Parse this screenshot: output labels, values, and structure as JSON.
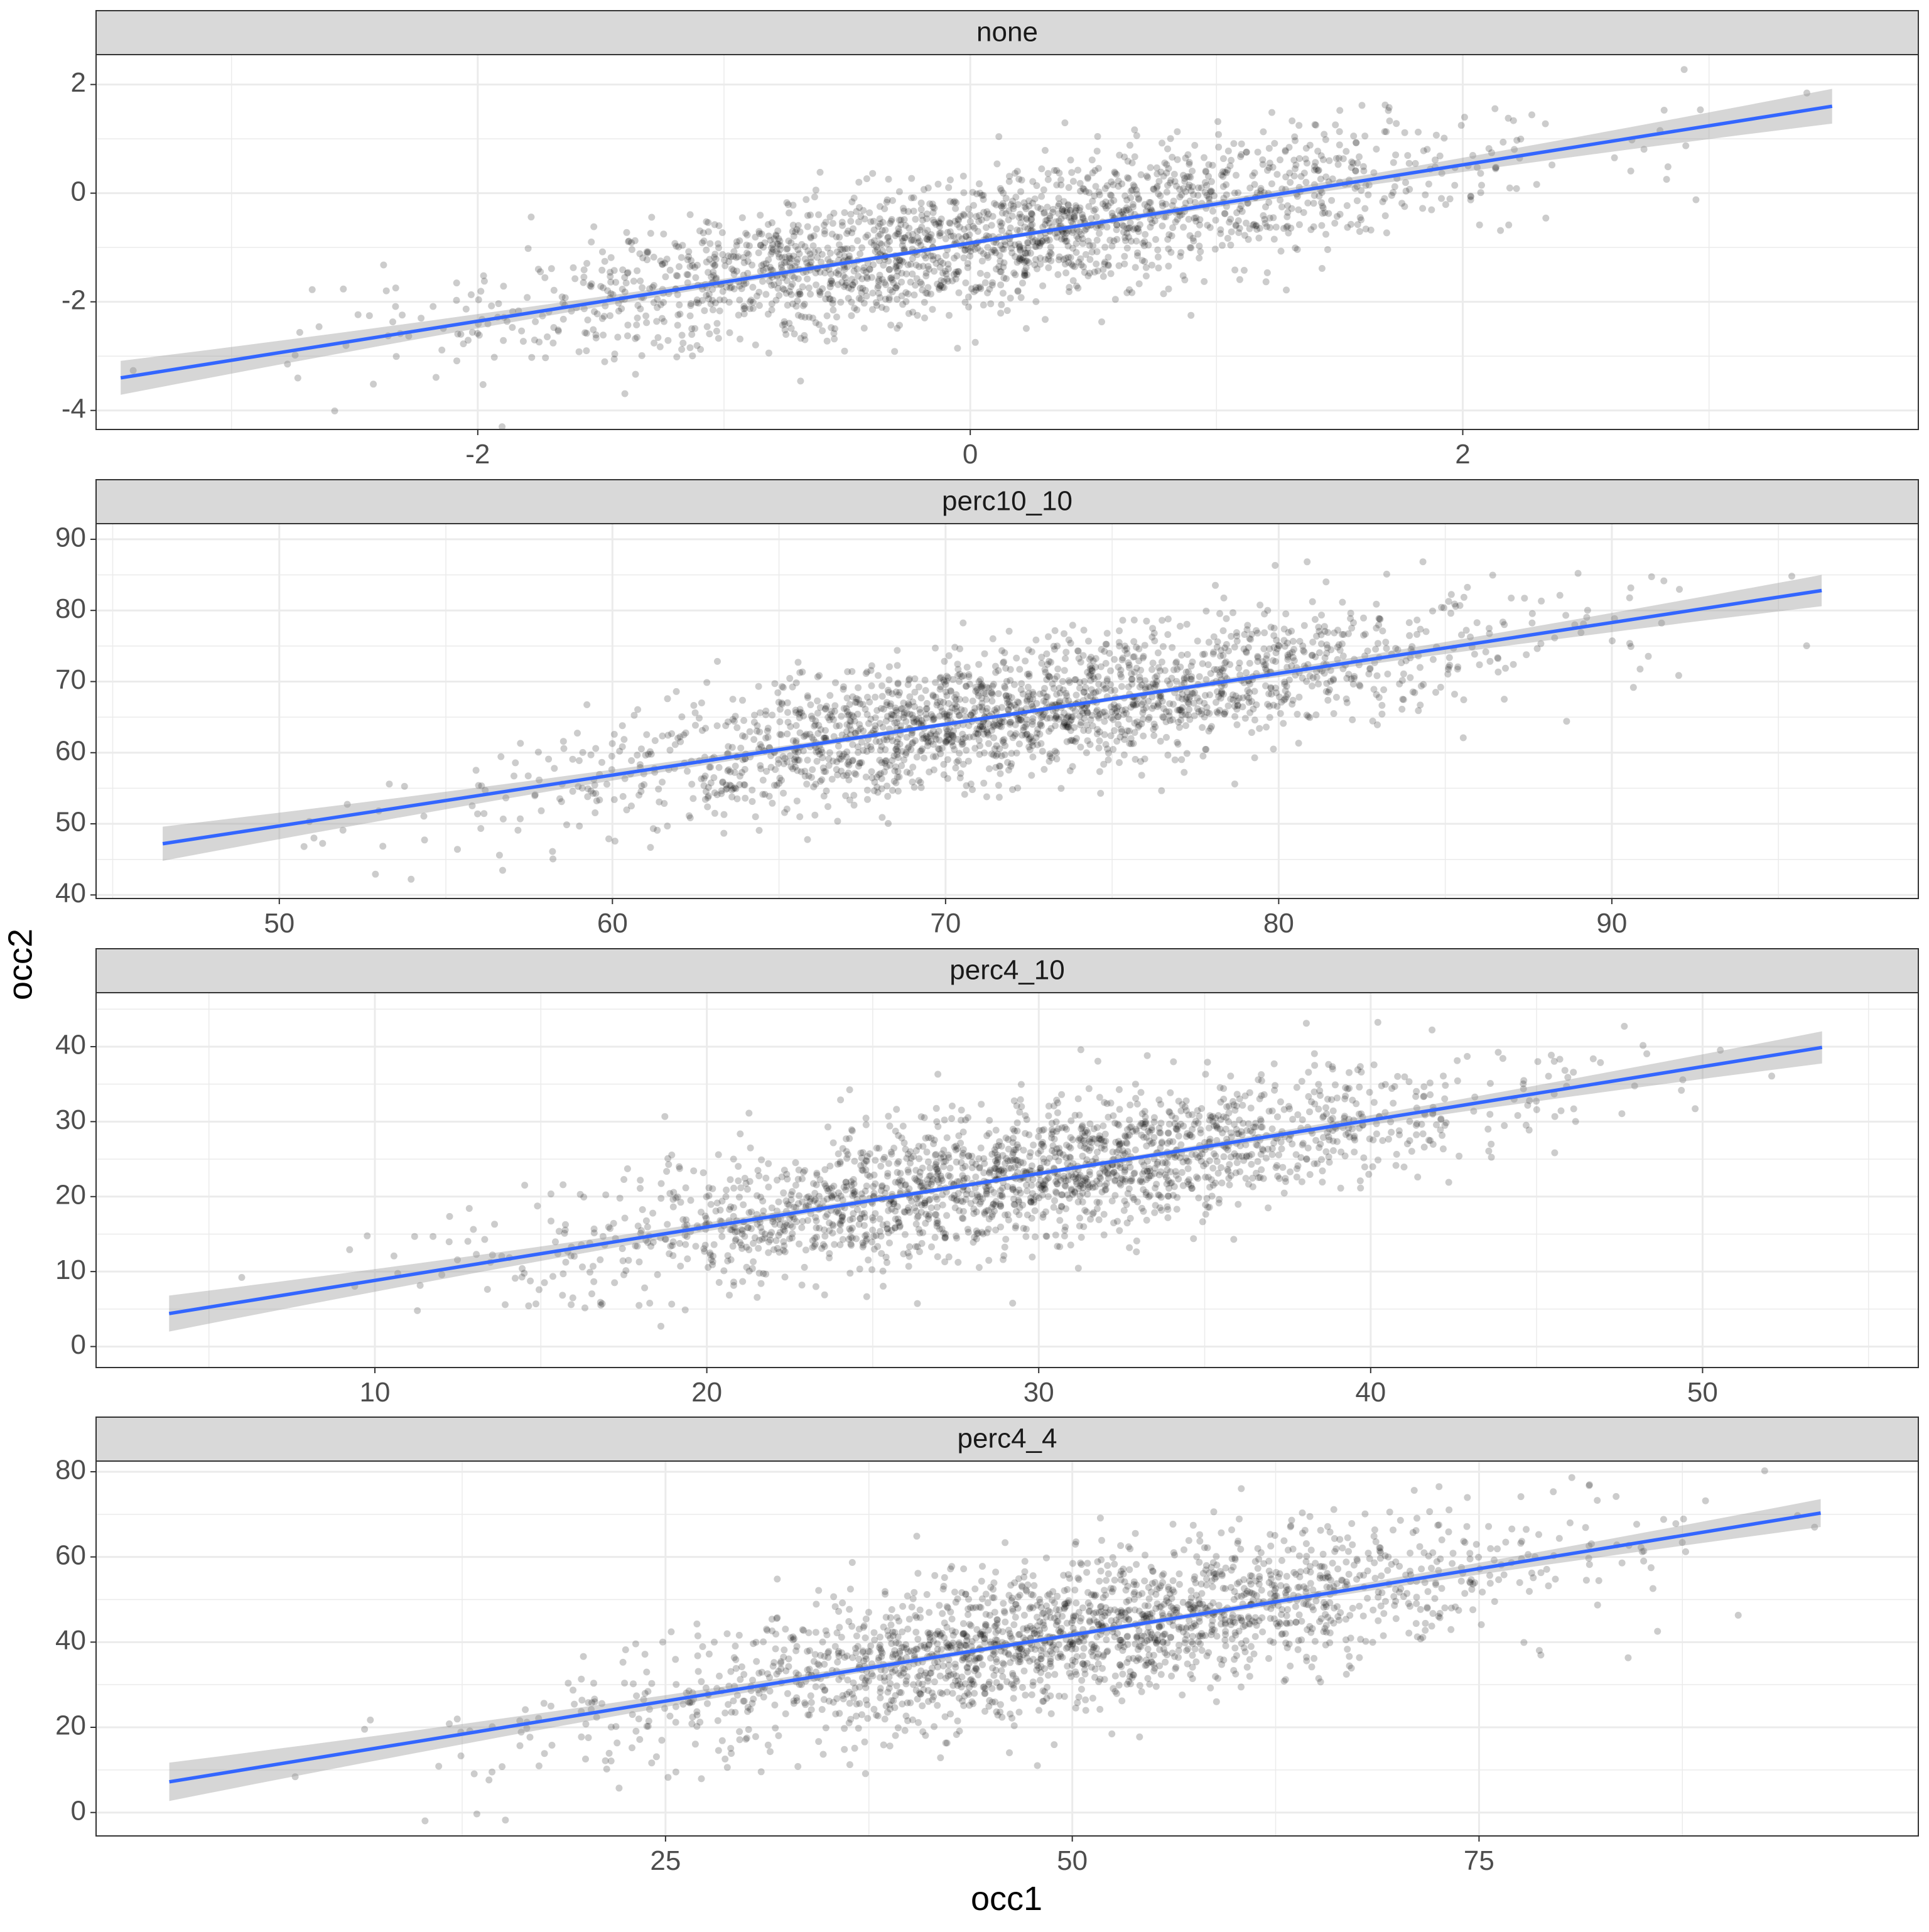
{
  "chart_data": {
    "type": "scatter",
    "xlabel": "occ1",
    "ylabel": "occ2",
    "point_color": "#000000",
    "point_alpha": 0.2,
    "line_color": "#3366FF",
    "band_color": "#999999",
    "strip_color": "#D9D9D9",
    "grid_color": "#EBEBEB",
    "points_per_panel": 2000,
    "panels": [
      {
        "title": "none",
        "xlim": [
          -3.55,
          3.85
        ],
        "ylim": [
          -4.35,
          2.55
        ],
        "xticks": [
          -2,
          0,
          2
        ],
        "xtick_labels": [
          "-2",
          "0",
          "2"
        ],
        "yticks": [
          -4,
          -2,
          0,
          2
        ],
        "ytick_labels": [
          "-4",
          "-2",
          "0",
          "2"
        ],
        "x_mean": 0.0,
        "x_sd": 1.0,
        "fit": {
          "x0": -3.45,
          "x1": 3.5,
          "y0": -3.4,
          "y1": 1.6
        },
        "resid_sd": 0.62,
        "band_halfwidth_ends": 0.32,
        "band_halfwidth_center": 0.04,
        "seed": 11
      },
      {
        "title": "perc10_10",
        "xlim": [
          44.5,
          99.2
        ],
        "ylim": [
          39.5,
          92.2
        ],
        "xticks": [
          50,
          60,
          70,
          80,
          90
        ],
        "xtick_labels": [
          "50",
          "60",
          "70",
          "80",
          "90"
        ],
        "yticks": [
          40,
          50,
          60,
          70,
          80,
          90
        ],
        "ytick_labels": [
          "40",
          "50",
          "60",
          "70",
          "80",
          "90"
        ],
        "x_mean": 72.0,
        "x_sd": 7.0,
        "fit": {
          "x0": 46.5,
          "x1": 96.3,
          "y0": 47.2,
          "y1": 82.8
        },
        "resid_sd": 4.6,
        "band_halfwidth_ends": 2.4,
        "band_halfwidth_center": 0.3,
        "seed": 23
      },
      {
        "title": "perc4_10",
        "xlim": [
          1.6,
          56.5
        ],
        "ylim": [
          -2.8,
          47.2
        ],
        "xticks": [
          10,
          20,
          30,
          40,
          50
        ],
        "xtick_labels": [
          "10",
          "20",
          "30",
          "40",
          "50"
        ],
        "yticks": [
          0,
          10,
          20,
          30,
          40
        ],
        "ytick_labels": [
          "0",
          "10",
          "20",
          "30",
          "40"
        ],
        "x_mean": 29.5,
        "x_sd": 7.0,
        "fit": {
          "x0": 3.8,
          "x1": 53.6,
          "y0": 4.4,
          "y1": 39.9
        },
        "resid_sd": 4.6,
        "band_halfwidth_ends": 2.4,
        "band_halfwidth_center": 0.3,
        "seed": 37
      },
      {
        "title": "perc4_4",
        "xlim": [
          -10.0,
          102.0
        ],
        "ylim": [
          -5.5,
          82.5
        ],
        "xticks": [
          25,
          50,
          75
        ],
        "xtick_labels": [
          "25",
          "50",
          "75"
        ],
        "yticks": [
          0,
          20,
          40,
          60,
          80
        ],
        "ytick_labels": [
          "0",
          "20",
          "40",
          "60",
          "80"
        ],
        "x_mean": 50.0,
        "x_sd": 14.0,
        "fit": {
          "x0": -5.5,
          "x1": 96.0,
          "y0": 7.2,
          "y1": 70.3
        },
        "resid_sd": 8.6,
        "band_halfwidth_ends": 4.5,
        "band_halfwidth_center": 0.6,
        "seed": 53
      }
    ]
  }
}
